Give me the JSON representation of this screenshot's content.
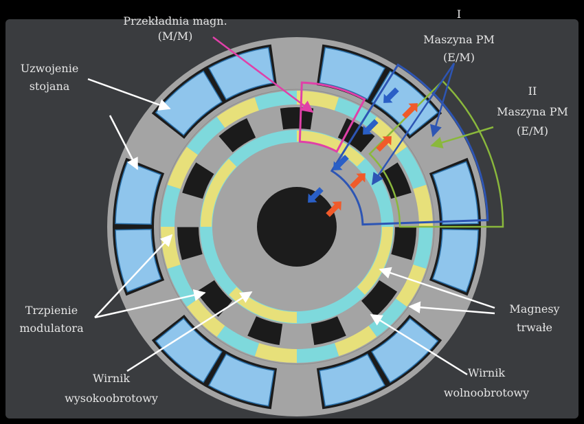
{
  "labels": {
    "gear_l1": "Przekładnia magn.",
    "gear_l2": "(M/M)",
    "pm1_l1": "I",
    "pm1_l2": "Maszyna PM",
    "pm1_l3": "(E/M)",
    "pm2_l1": "II",
    "pm2_l2": "Maszyna PM",
    "pm2_l3": "(E/M)",
    "winding_l1": "Uzwojenie",
    "winding_l2": "stojana",
    "modulator_l1": "Trzpienie",
    "modulator_l2": "modulatora",
    "magnets_l1": "Magnesy",
    "magnets_l2": "trwałe",
    "hs_rotor_l1": "Wirnik",
    "hs_rotor_l2": "wysokoobrotowy",
    "ls_rotor_l1": "Wirnik",
    "ls_rotor_l2": "wolnoobrotowy"
  },
  "colors": {
    "background": "#000000",
    "frame": "#3a3c3f",
    "iron": "#a4a4a4",
    "slot": "#1b1b1b",
    "coil": "#8fc5ec",
    "coil_edge": "#2a6fa8",
    "magnet_yellow": "#e7e07a",
    "magnet_cyan": "#7ed9dc",
    "gear_box": "#e040a8",
    "pm1_box": "#2d55b4",
    "pm2_box": "#8ab83c",
    "arrow_blue": "#2a5fc6",
    "arrow_red": "#f05a2a",
    "pointer": "#ffffff"
  }
}
